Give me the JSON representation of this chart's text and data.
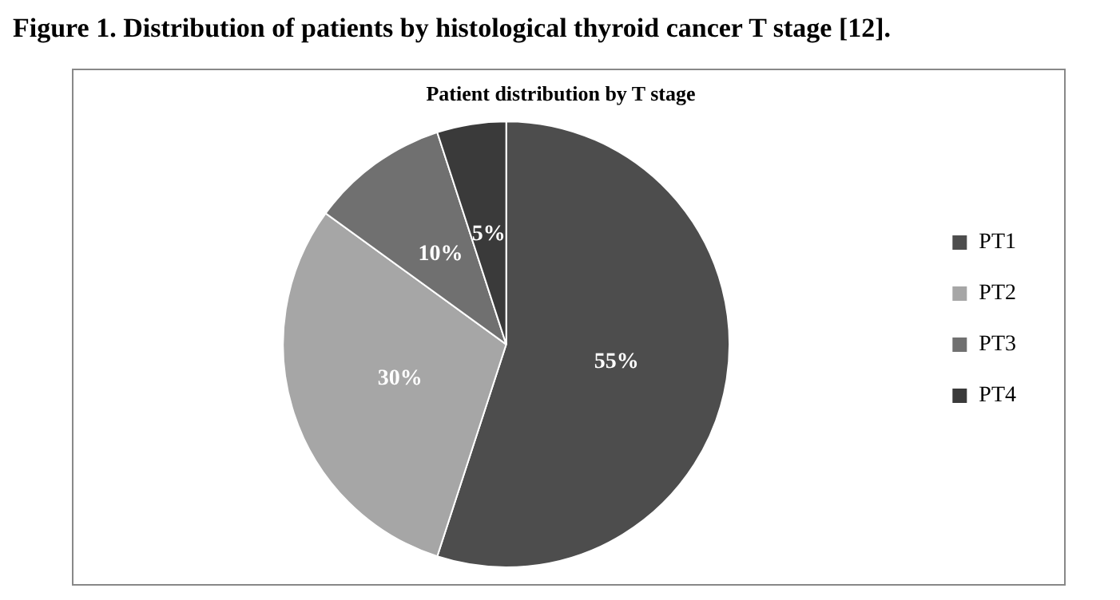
{
  "chart_data": {
    "type": "pie",
    "title": "Figure 1. Distribution of patients by histological thyroid cancer T stage [12].",
    "subtitle": "Patient distribution by T stage",
    "categories": [
      "PT1",
      "PT2",
      "PT3",
      "PT4"
    ],
    "values": [
      55,
      30,
      10,
      5
    ],
    "colors": [
      "#4d4d4d",
      "#a6a6a6",
      "#707070",
      "#3a3a3a"
    ],
    "value_labels": [
      "55%",
      "30%",
      "10%",
      "5%"
    ],
    "legend": "right"
  }
}
